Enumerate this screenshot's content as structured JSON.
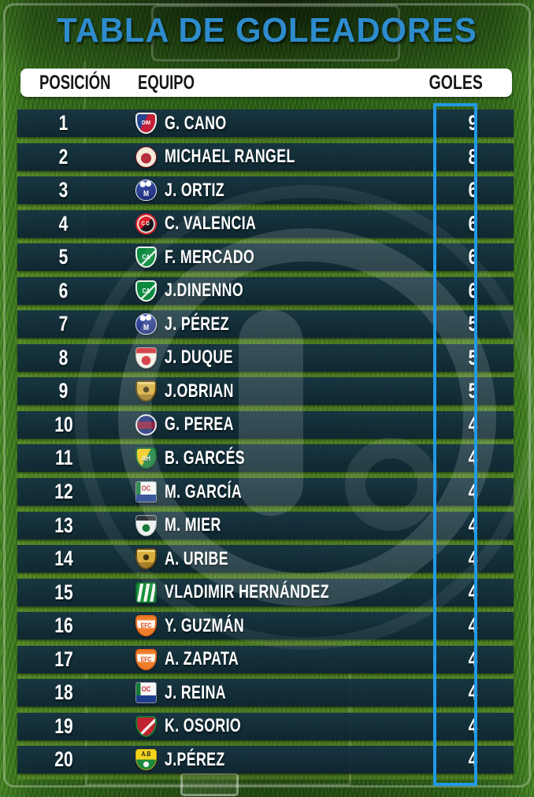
{
  "title": "TABLA DE GOLEADORES",
  "header": {
    "position": "POSICIÓN",
    "team": "EQUIPO",
    "goals": "GOLES"
  },
  "colors": {
    "title_blue": "#2e8ccd",
    "goals_box_blue": "#219ae6",
    "row_band": "#12293a",
    "header_bg": "#ffffff",
    "row_text": "#ffffff",
    "grass_green": "#2c6018"
  },
  "chart_data": {
    "type": "table",
    "title": "TABLA DE GOLEADORES",
    "columns": [
      "POSICIÓN",
      "EQUIPO",
      "GOLES"
    ],
    "rows": [
      {
        "position": 1,
        "team_crest": "independiente-medellin",
        "crest_monogram": "DIM",
        "player": "G. CANO",
        "goals": 9
      },
      {
        "position": 2,
        "team_crest": "america-de-cali",
        "crest_monogram": "",
        "player": "MICHAEL RANGEL",
        "goals": 8
      },
      {
        "position": 3,
        "team_crest": "millonarios",
        "crest_monogram": "M",
        "player": "J. ORTIZ",
        "goals": 6
      },
      {
        "position": 4,
        "team_crest": "cucuta-deportivo",
        "crest_monogram": "CD",
        "player": "C. VALENCIA",
        "goals": 6
      },
      {
        "position": 5,
        "team_crest": "deportivo-cali",
        "crest_monogram": "CA",
        "player": "F. MERCADO",
        "goals": 6
      },
      {
        "position": 6,
        "team_crest": "deportivo-cali",
        "crest_monogram": "CA",
        "player": "J.DINENNO",
        "goals": 6
      },
      {
        "position": 7,
        "team_crest": "millonarios",
        "crest_monogram": "M",
        "player": "J. PÉREZ",
        "goals": 5
      },
      {
        "position": 8,
        "team_crest": "santa-fe",
        "crest_monogram": "",
        "player": "J. DUQUE",
        "goals": 5
      },
      {
        "position": 9,
        "team_crest": "aguilas-doradas",
        "crest_monogram": "",
        "player": "J.OBRIAN",
        "goals": 5
      },
      {
        "position": 10,
        "team_crest": "deportivo-pasto",
        "crest_monogram": "",
        "player": "G. PEREA",
        "goals": 4
      },
      {
        "position": 11,
        "team_crest": "atletico-huila",
        "crest_monogram": "AH",
        "player": "B. GARCÉS",
        "goals": 4
      },
      {
        "position": 12,
        "team_crest": "once-caldas",
        "crest_monogram": "OC",
        "player": "M. GARCÍA",
        "goals": 4
      },
      {
        "position": 13,
        "team_crest": "la-equidad",
        "crest_monogram": "",
        "player": "M. MIER",
        "goals": 4
      },
      {
        "position": 14,
        "team_crest": "aguilas-doradas",
        "crest_monogram": "",
        "player": "A. URIBE",
        "goals": 4
      },
      {
        "position": 15,
        "team_crest": "atletico-nacional",
        "crest_monogram": "",
        "player": "VLADIMIR HERNÁNDEZ",
        "goals": 4
      },
      {
        "position": 16,
        "team_crest": "envigado-fc",
        "crest_monogram": "EFC",
        "player": "Y. GUZMÁN",
        "goals": 4
      },
      {
        "position": 17,
        "team_crest": "envigado-fc",
        "crest_monogram": "EFC",
        "player": "A. ZAPATA",
        "goals": 4
      },
      {
        "position": 18,
        "team_crest": "once-caldas",
        "crest_monogram": "OC",
        "player": "J. REINA",
        "goals": 4
      },
      {
        "position": 19,
        "team_crest": "patriotas-boyaca",
        "crest_monogram": "",
        "player": "K. OSORIO",
        "goals": 4
      },
      {
        "position": 20,
        "team_crest": "atletico-bucaramanga",
        "crest_monogram": "A.B",
        "player": "J.PÉREZ",
        "goals": 4
      }
    ]
  }
}
